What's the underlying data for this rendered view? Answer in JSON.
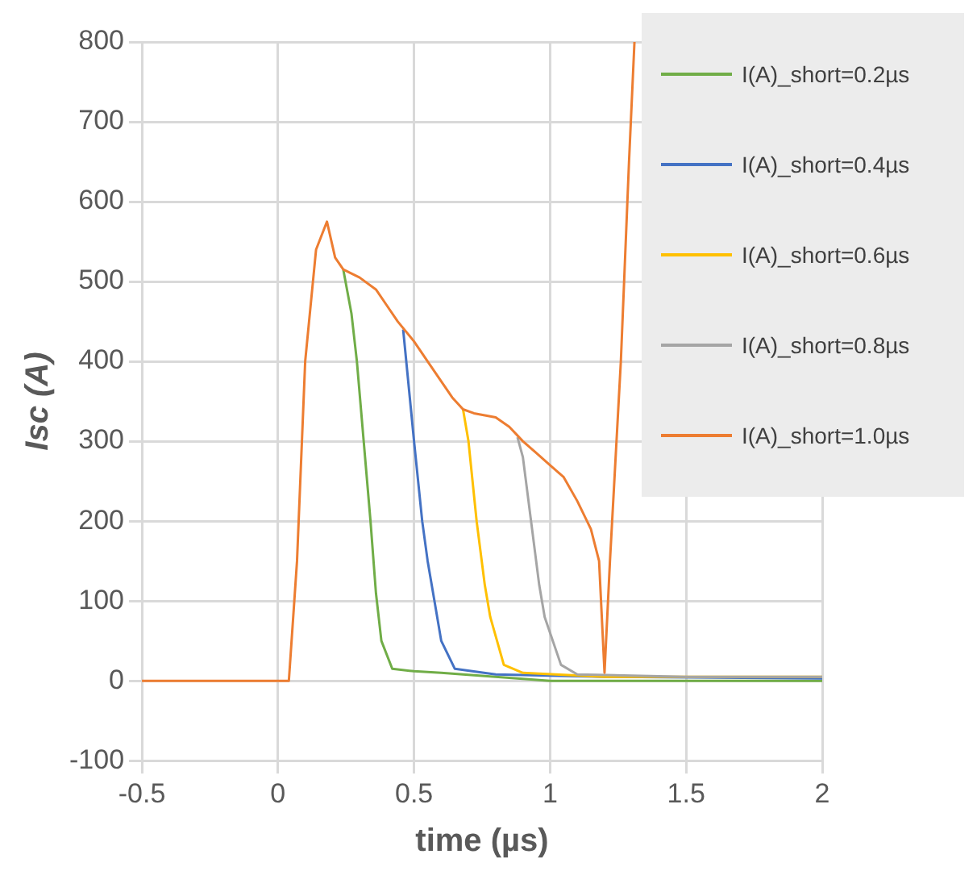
{
  "chart_data": {
    "type": "line",
    "xlabel": "time (µs)",
    "ylabel": "Isc (A)",
    "xlim": [
      -0.5,
      2
    ],
    "xticks": [
      -0.5,
      0,
      0.5,
      1,
      1.5,
      2
    ],
    "ylim": [
      -100,
      800
    ],
    "yticks": [
      -100,
      0,
      100,
      200,
      300,
      400,
      500,
      600,
      700,
      800
    ],
    "grid": true,
    "legend": "top right",
    "marker": "none",
    "line_style": "solid",
    "series": [
      {
        "name": "I(A)_short=0.2µs",
        "color": "#70ad47",
        "x": [
          0.24,
          0.27,
          0.29,
          0.32,
          0.34,
          0.36,
          0.38,
          0.42,
          0.5,
          0.6,
          0.8,
          1.0,
          1.5,
          2
        ],
        "values": [
          515,
          460,
          400,
          280,
          200,
          110,
          50,
          15,
          12,
          10,
          5,
          0,
          0,
          0
        ]
      },
      {
        "name": "I(A)_short=0.4µs",
        "color": "#4472c4",
        "x": [
          0.46,
          0.5,
          0.53,
          0.55,
          0.58,
          0.6,
          0.65,
          0.8,
          1.2,
          2
        ],
        "values": [
          440,
          300,
          200,
          150,
          90,
          50,
          15,
          8,
          5,
          3
        ]
      },
      {
        "name": "I(A)_short=0.6µs",
        "color": "#ffc000",
        "x": [
          0.68,
          0.7,
          0.73,
          0.76,
          0.78,
          0.83,
          0.9,
          1.2,
          2
        ],
        "values": [
          340,
          300,
          200,
          120,
          80,
          20,
          10,
          5,
          5
        ]
      },
      {
        "name": "I(A)_short=0.8µs",
        "color": "#a5a5a5",
        "x": [
          0.88,
          0.9,
          0.93,
          0.96,
          0.98,
          1.04,
          1.1,
          1.5,
          2
        ],
        "values": [
          305,
          280,
          200,
          120,
          80,
          20,
          8,
          5,
          5
        ]
      },
      {
        "name": "I(A)_short=1.0µs",
        "color": "#ed7d31",
        "x": [
          -0.5,
          -0.2,
          0,
          0.04,
          0.07,
          0.1,
          0.14,
          0.18,
          0.21,
          0.24,
          0.3,
          0.36,
          0.4,
          0.44,
          0.5,
          0.56,
          0.6,
          0.64,
          0.68,
          0.72,
          0.8,
          0.85,
          0.9,
          0.95,
          1.0,
          1.05,
          1.1,
          1.15,
          1.18,
          1.2,
          1.22,
          1.26,
          1.29,
          1.31
        ],
        "values": [
          0,
          0,
          0,
          0,
          150,
          400,
          540,
          575,
          530,
          515,
          505,
          490,
          470,
          450,
          425,
          395,
          375,
          355,
          340,
          335,
          330,
          318,
          300,
          285,
          270,
          255,
          225,
          190,
          150,
          10,
          150,
          400,
          650,
          800
        ]
      }
    ]
  }
}
